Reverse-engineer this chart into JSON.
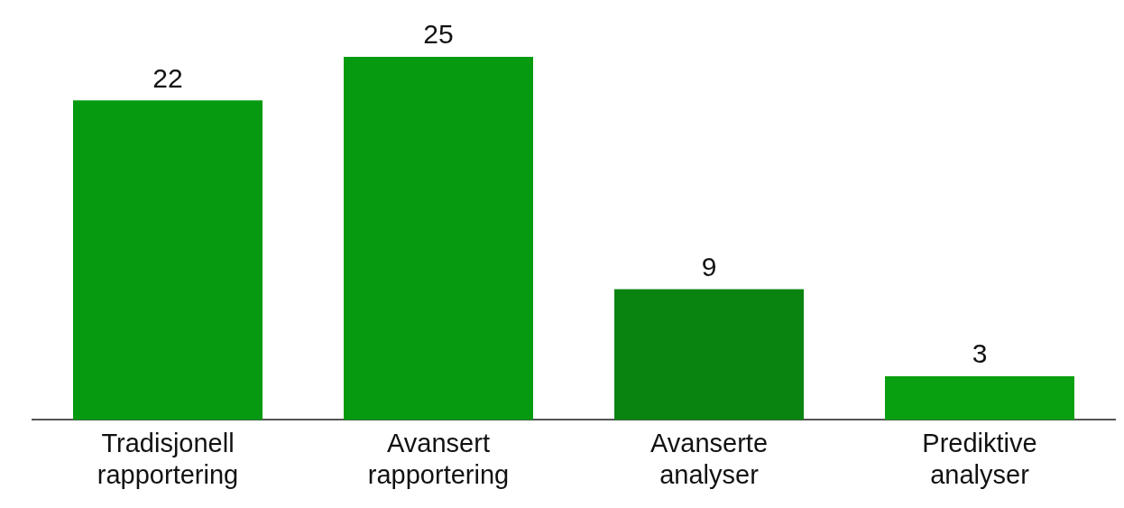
{
  "chart_data": {
    "type": "bar",
    "categories": [
      "Tradisjonell rapportering",
      "Avansert rapportering",
      "Avanserte analyser",
      "Prediktive analyser"
    ],
    "values": [
      22,
      25,
      9,
      3
    ],
    "colors": [
      "#069a10",
      "#069a10",
      "#0a8410",
      "#08a010"
    ],
    "data_labels": true,
    "relative": false,
    "grid": false,
    "legend": false
  }
}
